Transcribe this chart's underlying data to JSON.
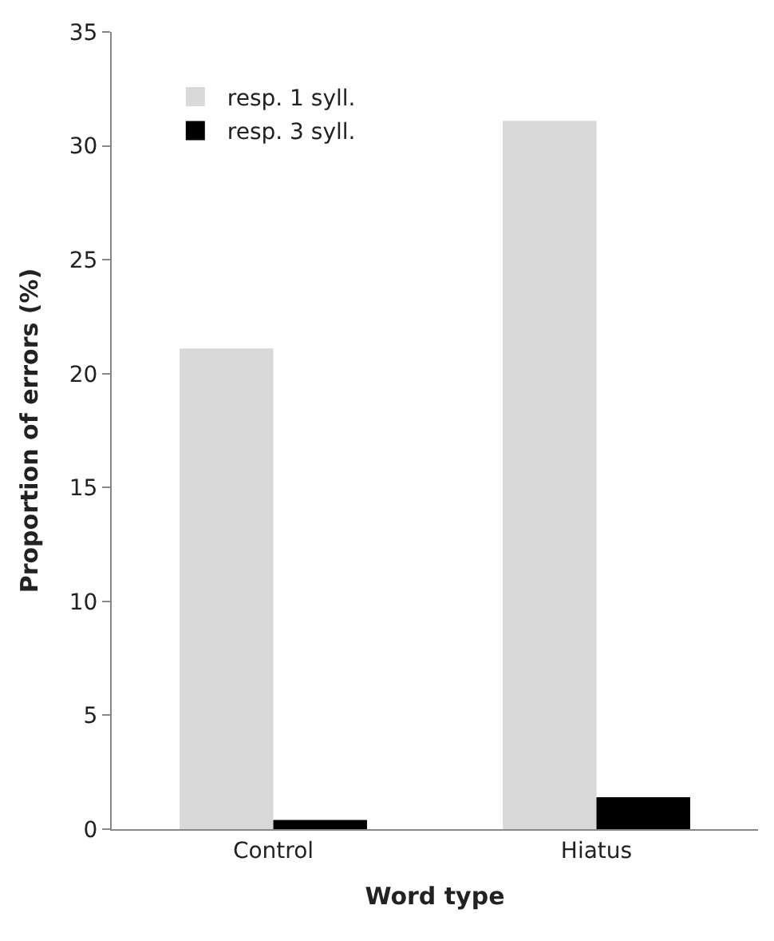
{
  "chart_data": {
    "type": "bar",
    "xlabel": "Word type",
    "ylabel": "Proportion of errors (%)",
    "categories": [
      "Control",
      "Hiatus"
    ],
    "series": [
      {
        "name": "resp. 1 syll.",
        "color": "#d9d9d9",
        "values": [
          21.1,
          31.1
        ]
      },
      {
        "name": "resp. 3 syll.",
        "color": "#000000",
        "values": [
          0.4,
          1.4
        ]
      }
    ],
    "ylim": [
      0,
      35
    ],
    "yticks": [
      0,
      5,
      10,
      15,
      20,
      25,
      30,
      35
    ],
    "legend": "top left"
  }
}
